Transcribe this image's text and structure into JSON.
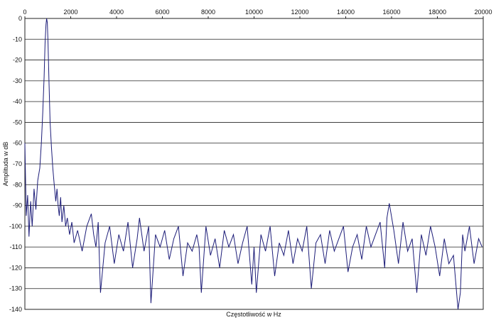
{
  "chart_data": {
    "type": "line",
    "title": "",
    "xlabel": "Częstotliwość w Hz",
    "ylabel": "Amplituda w dB",
    "xlim": [
      0,
      20000
    ],
    "ylim": [
      -140,
      0
    ],
    "x_ticks": [
      "0",
      "2000",
      "4000",
      "6000",
      "8000",
      "10000",
      "12000",
      "14000",
      "16000",
      "18000",
      "20000"
    ],
    "y_ticks": [
      "0",
      "-10",
      "-20",
      "-30",
      "-40",
      "-50",
      "-60",
      "-70",
      "-80",
      "-90",
      "-100",
      "-110",
      "-120",
      "-130",
      "-140"
    ],
    "x_axis_position": "top",
    "grid": "horizontal",
    "legend": "none",
    "line_color": "#1c1c78",
    "series": [
      {
        "x": [
          0,
          60,
          120,
          180,
          250,
          320,
          400,
          480,
          560,
          650,
          720,
          780,
          840,
          880,
          920,
          950,
          980,
          1010,
          1050,
          1100,
          1160,
          1220,
          1280,
          1350,
          1400,
          1450,
          1500,
          1560,
          1620,
          1700,
          1780,
          1850,
          1950,
          2050,
          2150,
          2300,
          2500,
          2700,
          2900,
          3000,
          3100,
          3200,
          3300,
          3500,
          3700,
          3900,
          4100,
          4300,
          4500,
          4700,
          4900,
          5000,
          5200,
          5400,
          5500,
          5700,
          5900,
          6100,
          6300,
          6500,
          6700,
          6900,
          7100,
          7300,
          7500,
          7600,
          7700,
          7900,
          8100,
          8300,
          8500,
          8700,
          8900,
          9100,
          9300,
          9500,
          9700,
          9900,
          10000,
          10100,
          10300,
          10500,
          10700,
          10900,
          11100,
          11300,
          11500,
          11700,
          11900,
          12100,
          12300,
          12500,
          12700,
          12900,
          13100,
          13300,
          13500,
          13700,
          13900,
          14100,
          14300,
          14500,
          14700,
          14900,
          15100,
          15300,
          15500,
          15700,
          15800,
          15900,
          16100,
          16300,
          16500,
          16700,
          16900,
          17100,
          17300,
          17500,
          17700,
          17900,
          18100,
          18300,
          18500,
          18700,
          18900,
          19000,
          19100,
          19200,
          19400,
          19600,
          19800,
          19950
        ],
        "y": [
          -60,
          -95,
          -85,
          -105,
          -88,
          -100,
          -82,
          -92,
          -78,
          -72,
          -60,
          -45,
          -28,
          -12,
          -3,
          0,
          -2,
          -12,
          -30,
          -50,
          -62,
          -72,
          -80,
          -88,
          -82,
          -90,
          -95,
          -86,
          -98,
          -90,
          -100,
          -96,
          -104,
          -98,
          -108,
          -102,
          -112,
          -100,
          -94,
          -104,
          -110,
          -98,
          -132,
          -108,
          -100,
          -118,
          -104,
          -112,
          -98,
          -120,
          -106,
          -96,
          -112,
          -100,
          -137,
          -104,
          -110,
          -102,
          -116,
          -106,
          -100,
          -124,
          -108,
          -112,
          -104,
          -110,
          -132,
          -100,
          -114,
          -106,
          -120,
          -102,
          -110,
          -104,
          -118,
          -108,
          -100,
          -128,
          -110,
          -132,
          -104,
          -112,
          -100,
          -124,
          -108,
          -114,
          -102,
          -118,
          -106,
          -112,
          -100,
          -130,
          -108,
          -104,
          -118,
          -102,
          -112,
          -106,
          -100,
          -122,
          -110,
          -104,
          -116,
          -100,
          -110,
          -104,
          -98,
          -120,
          -96,
          -89,
          -102,
          -118,
          -98,
          -112,
          -106,
          -132,
          -104,
          -114,
          -100,
          -110,
          -124,
          -106,
          -118,
          -114,
          -140,
          -132,
          -104,
          -112,
          -100,
          -118,
          -106,
          -110
        ]
      }
    ]
  }
}
